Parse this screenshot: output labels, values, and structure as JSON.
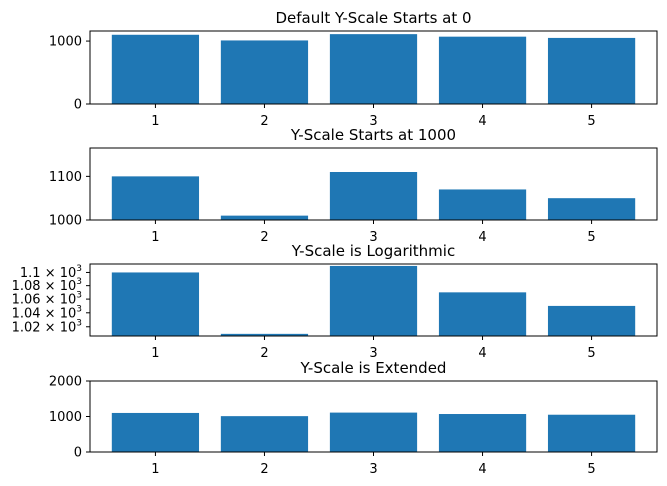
{
  "bar_color": "#1f77b4",
  "chart_data": [
    {
      "type": "bar",
      "title": "Default Y-Scale Starts at 0",
      "categories": [
        "1",
        "2",
        "3",
        "4",
        "5"
      ],
      "values": [
        1100,
        1010,
        1110,
        1070,
        1050
      ],
      "ylim": [
        0,
        1160
      ],
      "yticks": [
        0,
        1000
      ],
      "ytick_labels": [
        "0",
        "1000"
      ],
      "yscale": "linear"
    },
    {
      "type": "bar",
      "title": "Y-Scale Starts at 1000",
      "categories": [
        "1",
        "2",
        "3",
        "4",
        "5"
      ],
      "values": [
        1100,
        1010,
        1110,
        1070,
        1050
      ],
      "ylim": [
        1000,
        1165
      ],
      "yticks": [
        1000,
        1100
      ],
      "ytick_labels": [
        "1000",
        "1100"
      ],
      "yscale": "linear"
    },
    {
      "type": "bar",
      "title": "Y-Scale is Logarithmic",
      "categories": [
        "1",
        "2",
        "3",
        "4",
        "5"
      ],
      "values": [
        1100,
        1010,
        1110,
        1070,
        1050
      ],
      "ylim": [
        1007,
        1113
      ],
      "yticks": [
        1020,
        1040,
        1060,
        1080,
        1100
      ],
      "ytick_labels": [
        {
          "base": "1.02 × 10",
          "exp": "3"
        },
        {
          "base": "1.04 × 10",
          "exp": "3"
        },
        {
          "base": "1.06 × 10",
          "exp": "3"
        },
        {
          "base": "1.08 × 10",
          "exp": "3"
        },
        {
          "base": "1.1 × 10",
          "exp": "3"
        }
      ],
      "yscale": "log"
    },
    {
      "type": "bar",
      "title": "Y-Scale is Extended",
      "categories": [
        "1",
        "2",
        "3",
        "4",
        "5"
      ],
      "values": [
        1100,
        1010,
        1110,
        1070,
        1050
      ],
      "ylim": [
        0,
        2000
      ],
      "yticks": [
        0,
        1000,
        2000
      ],
      "ytick_labels": [
        "0",
        "1000",
        "2000"
      ],
      "yscale": "linear"
    }
  ]
}
